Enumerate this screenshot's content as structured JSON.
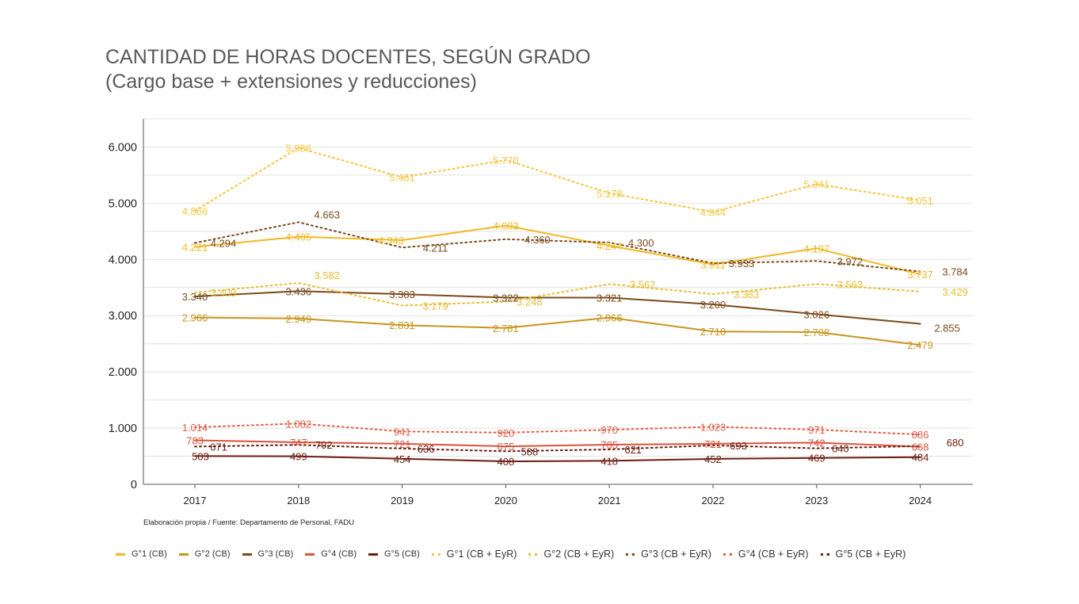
{
  "chart_data": {
    "type": "line",
    "title": "CANTIDAD DE HORAS DOCENTES, SEGÚN GRADO",
    "subtitle": "(Cargo base + extensiones y reducciones)",
    "categories": [
      "2017",
      "2018",
      "2019",
      "2020",
      "2021",
      "2022",
      "2023",
      "2024"
    ],
    "ylim": [
      0,
      6500
    ],
    "yticks": [
      0,
      1000,
      2000,
      3000,
      4000,
      5000,
      6000
    ],
    "ytick_labels": [
      "0",
      "1.000",
      "2.000",
      "3.000",
      "4.000",
      "5.000",
      "6.000"
    ],
    "grid": true,
    "legend_position": "bottom",
    "series": [
      {
        "name": "G°1 (CB)",
        "color": "#F2B824",
        "style": "solid",
        "values": [
          4221,
          4405,
          4343,
          4603,
          4244,
          3911,
          4197,
          3737
        ],
        "labels": [
          "4.221",
          "4.405",
          "4.343",
          "4.603",
          "4.244",
          "3.911",
          "4.197",
          "3.737"
        ]
      },
      {
        "name": "G°2 (CB)",
        "color": "#C8951D",
        "style": "solid",
        "values": [
          2966,
          2949,
          2831,
          2781,
          2966,
          2718,
          2708,
          2479
        ],
        "labels": [
          "2.966",
          "2.949",
          "2.831",
          "2.781",
          "2.966",
          "2.718",
          "2.708",
          "2.479"
        ]
      },
      {
        "name": "G°3 (CB)",
        "color": "#7A4A1A",
        "style": "solid",
        "values": [
          3340,
          3436,
          3383,
          3322,
          3321,
          3200,
          3026,
          2855
        ],
        "labels": [
          "3.340",
          "3.436",
          "3.383",
          "3.322",
          "3.321",
          "3.200",
          "3.026",
          "2.855"
        ]
      },
      {
        "name": "G°4 (CB)",
        "color": "#D9533B",
        "style": "solid",
        "values": [
          783,
          747,
          721,
          675,
          705,
          721,
          742,
          668
        ],
        "labels": [
          "783",
          "747",
          "721",
          "675",
          "705",
          "721",
          "742",
          "668"
        ]
      },
      {
        "name": "G°5 (CB)",
        "color": "#6B1E12",
        "style": "solid",
        "values": [
          503,
          499,
          454,
          408,
          418,
          452,
          469,
          484
        ],
        "labels": [
          "503",
          "499",
          "454",
          "408",
          "418",
          "452",
          "469",
          "484"
        ]
      },
      {
        "name": "G°1 (CB + EyR)",
        "color": "#F6C640",
        "style": "dotted",
        "values": [
          4866,
          5986,
          5461,
          5770,
          5178,
          4844,
          5341,
          5051
        ],
        "labels": [
          "4.866",
          "5.986",
          "5.461",
          "5.770",
          "5.178",
          "4.844",
          "5.341",
          "5.051"
        ]
      },
      {
        "name": "G°2 (CB + EyR)",
        "color": "#E6BE33",
        "style": "dotted",
        "values": [
          3409,
          3582,
          3179,
          3248,
          3562,
          3383,
          3563,
          3429
        ],
        "labels": [
          "3.409",
          "3.582",
          "3.179",
          "3.248",
          "3.562",
          "3.383",
          "3.563",
          "3.429"
        ]
      },
      {
        "name": "G°3 (CB + EyR)",
        "color": "#7A4A1A",
        "style": "dotted",
        "values": [
          4294,
          4663,
          4211,
          4360,
          4300,
          3933,
          3972,
          3784
        ],
        "labels": [
          "4.294",
          "4.663",
          "4.211",
          "4.360",
          "4.300",
          "3.933",
          "3.972",
          "3.784"
        ]
      },
      {
        "name": "G°4 (CB + EyR)",
        "color": "#E0614A",
        "style": "dotted",
        "values": [
          1014,
          1082,
          941,
          920,
          970,
          1023,
          971,
          886
        ],
        "labels": [
          "1.014",
          "1.082",
          "941",
          "920",
          "970",
          "1.023",
          "971",
          "886"
        ]
      },
      {
        "name": "G°5 (CB + EyR)",
        "color": "#6B1E12",
        "style": "dotted",
        "values": [
          671,
          702,
          636,
          588,
          621,
          693,
          640,
          680
        ],
        "labels": [
          "671",
          "702",
          "636",
          "588",
          "621",
          "693",
          "640",
          "680"
        ]
      }
    ]
  },
  "source": "Elaboración propia / Fuente: Departamento de Personal, FADU"
}
